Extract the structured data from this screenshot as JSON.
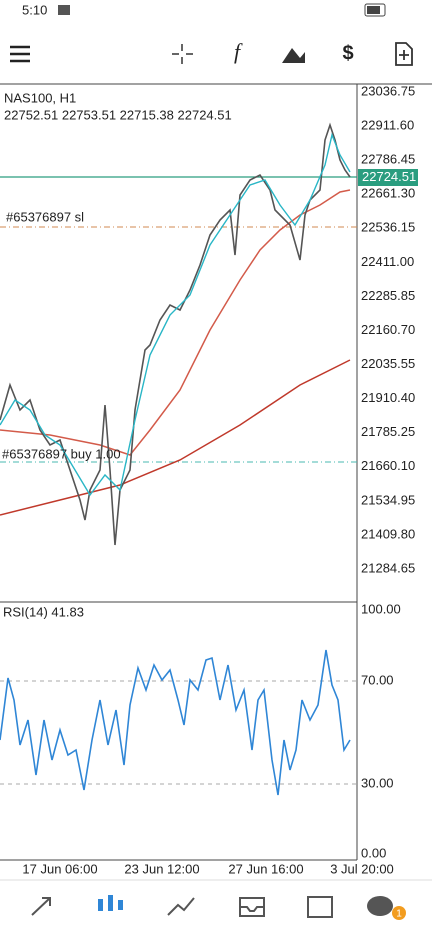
{
  "status_bar": {
    "time": "5:10"
  },
  "chart": {
    "symbol": "NAS100, H1",
    "ohlc": "22752.51 22753.51 22715.38 22724.51",
    "price_axis": [
      "23036.75",
      "22911.60",
      "22786.45",
      "22661.30",
      "22536.15",
      "22411.00",
      "22285.85",
      "22160.70",
      "22035.55",
      "21910.40",
      "21785.25",
      "21660.10",
      "21534.95",
      "21409.80",
      "21284.65"
    ],
    "current_price": "22724.51",
    "orders": [
      "#65376897 sl",
      "#65376897 buy 1.00"
    ],
    "indicator": "RSI(14) 41.83",
    "rsi_axis": [
      "100.00",
      "70.00",
      "30.00",
      "0.00"
    ],
    "time_axis": [
      "17 Jun 06:00",
      "23 Jun 12:00",
      "27 Jun 16:00",
      "3 Jul 20:00"
    ]
  },
  "nav": {
    "badge": "1"
  }
}
